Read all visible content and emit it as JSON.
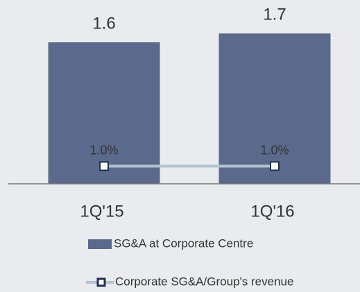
{
  "chart_data": {
    "type": "bar",
    "categories": [
      "1Q'15",
      "1Q'16"
    ],
    "series": [
      {
        "name": "SG&A at Corporate Centre",
        "type": "bar",
        "color": "#5b6a8c",
        "values": [
          1.6,
          1.7
        ]
      },
      {
        "name": "Corporate SG&A/Group's revenue",
        "type": "line",
        "axis": "y2",
        "color": "#b3c3cf",
        "marker_color": "#1f3050",
        "values": [
          1.0,
          1.0
        ],
        "value_labels": [
          "1.0%",
          "1.0%"
        ]
      }
    ],
    "ylim": [
      0,
      2.0
    ],
    "y2lim": [
      0,
      10
    ]
  }
}
